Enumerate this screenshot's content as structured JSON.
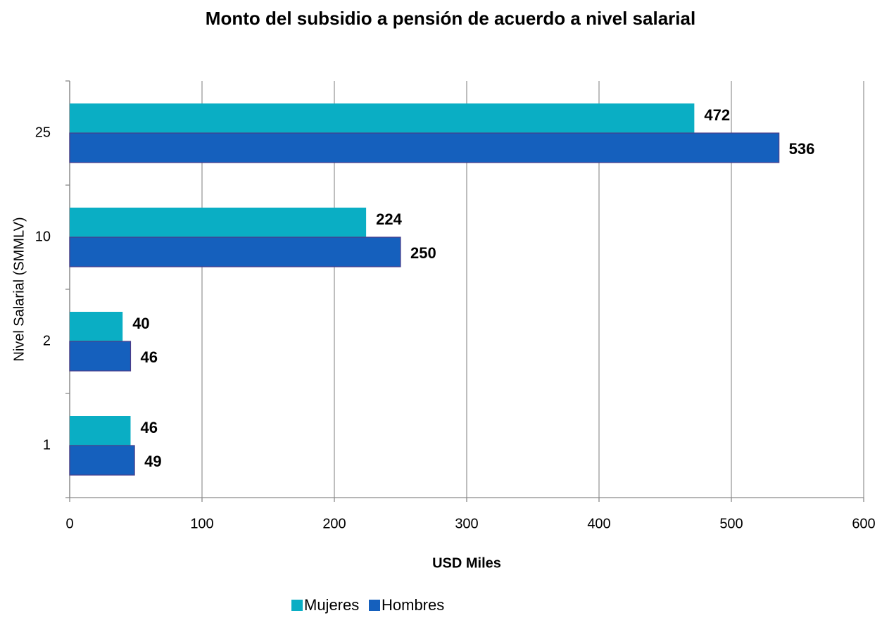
{
  "chart_data": {
    "type": "bar",
    "orientation": "horizontal",
    "title": "Monto del subsidio a pensión de acuerdo a nivel salarial",
    "x_label": "USD Miles",
    "y_label": "Nivel Salarial (SMMLV)",
    "categories": [
      "1",
      "2",
      "10",
      "25"
    ],
    "series": [
      {
        "name": "Mujeres",
        "color": "#0aaec4",
        "values": [
          46,
          40,
          224,
          472
        ]
      },
      {
        "name": "Hombres",
        "color": "#1560bd",
        "values": [
          49,
          46,
          250,
          536
        ]
      }
    ],
    "xlim": [
      0,
      600
    ],
    "xticks": [
      0,
      100,
      200,
      300,
      400,
      500,
      600
    ],
    "grid": true,
    "legend": "bottom"
  }
}
